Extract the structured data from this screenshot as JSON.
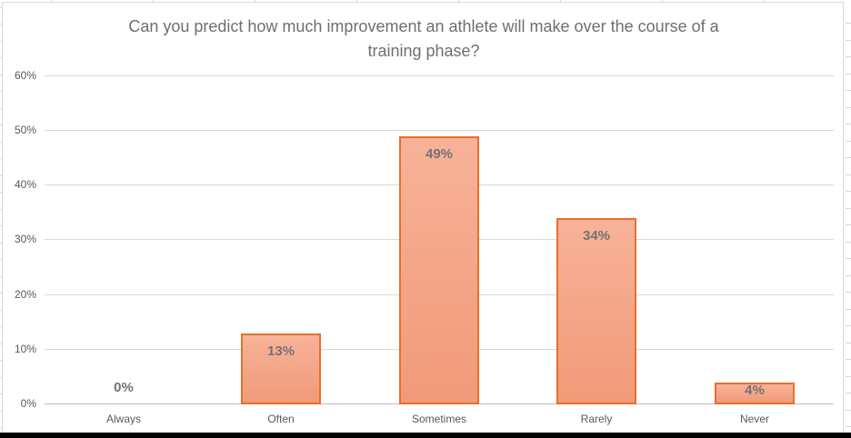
{
  "chart_data": {
    "type": "bar",
    "title": "Can you predict how much improvement an athlete will make over the course of a training phase?",
    "title_lines": [
      "Can you predict how much improvement an athlete will make over the course of a",
      "training phase?"
    ],
    "categories": [
      "Always",
      "Often",
      "Sometimes",
      "Rarely",
      "Never"
    ],
    "values": [
      0,
      13,
      49,
      34,
      4
    ],
    "data_labels": [
      "0%",
      "13%",
      "49%",
      "34%",
      "4%"
    ],
    "y_axis": {
      "min": 0,
      "max": 60,
      "step": 10,
      "ticks": [
        "0%",
        "10%",
        "20%",
        "30%",
        "40%",
        "50%",
        "60%"
      ]
    },
    "grid": true,
    "legend": false,
    "colors": {
      "bar_fill_top": "#F7B299",
      "bar_fill_bottom": "#F19A78",
      "bar_border": "#E8702A",
      "gridline": "#D9D9D9",
      "axis_line": "#BFBFBF",
      "chart_border": "#D9D9D9",
      "title_text": "#6F6F6F",
      "axis_text": "#595959",
      "data_label_text": "#767171",
      "bottom_edge": "#000000"
    }
  }
}
